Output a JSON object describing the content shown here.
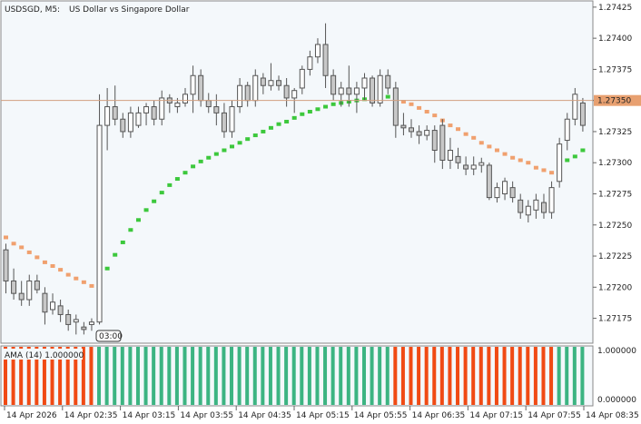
{
  "header": {
    "symbol_timeframe": "USDSGD, M5:",
    "description": "US Dollar vs Singapore Dollar"
  },
  "indicator_panel": {
    "label": "AMA (14) 1.000000",
    "levels": [
      "1.000000",
      "0.000000"
    ]
  },
  "crosshair_label": "03:00",
  "colors": {
    "background": "#F4F8FB",
    "bull_candle": "#FFFFFF",
    "bear_candle": "#C8C8C8",
    "candle_outline": "#555555",
    "ama_up": "#3CC83C",
    "ama_down": "#F0A06E",
    "bid_line": "#D2A080",
    "bid_tag": "#E8A070",
    "hist_red": "#F04A14",
    "hist_green": "#3CB482"
  },
  "chart_data": [
    {
      "type": "candlestick",
      "symbol": "USDSGD",
      "timeframe": "M5",
      "price_axis_ticks": [
        "1.27425",
        "1.27400",
        "1.27375",
        "1.27350",
        "1.27325",
        "1.27300",
        "1.27275",
        "1.27250",
        "1.27225",
        "1.27200",
        "1.27175"
      ],
      "current_price": "1.27350",
      "ylim": [
        1.27155,
        1.2743
      ],
      "time_axis_ticks": [
        "14 Apr 2026",
        "14 Apr 02:35",
        "14 Apr 03:15",
        "14 Apr 03:55",
        "14 Apr 04:35",
        "14 Apr 05:15",
        "14 Apr 05:55",
        "14 Apr 06:35",
        "14 Apr 07:15",
        "14 Apr 07:55",
        "14 Apr 08:35"
      ],
      "candles": [
        [
          1.2723,
          1.27235,
          1.27195,
          1.27205
        ],
        [
          1.27205,
          1.27215,
          1.2719,
          1.27195
        ],
        [
          1.27195,
          1.27205,
          1.27185,
          1.2719
        ],
        [
          1.2719,
          1.2721,
          1.27185,
          1.27205
        ],
        [
          1.27205,
          1.2721,
          1.27195,
          1.27198
        ],
        [
          1.27195,
          1.272,
          1.2717,
          1.2718
        ],
        [
          1.27182,
          1.27195,
          1.27178,
          1.27188
        ],
        [
          1.27185,
          1.2719,
          1.27172,
          1.27178
        ],
        [
          1.27178,
          1.27182,
          1.27165,
          1.2717
        ],
        [
          1.27172,
          1.27178,
          1.27162,
          1.27174
        ],
        [
          1.27168,
          1.27172,
          1.27162,
          1.27166
        ],
        [
          1.2717,
          1.27175,
          1.27165,
          1.27172
        ],
        [
          1.27172,
          1.27355,
          1.2717,
          1.2733
        ],
        [
          1.2733,
          1.2736,
          1.2731,
          1.27345
        ],
        [
          1.27345,
          1.27362,
          1.2733,
          1.27335
        ],
        [
          1.27335,
          1.2734,
          1.2732,
          1.27325
        ],
        [
          1.27325,
          1.27345,
          1.2732,
          1.2734
        ],
        [
          1.2733,
          1.27345,
          1.27328,
          1.2734
        ],
        [
          1.2734,
          1.27348,
          1.2733,
          1.27345
        ],
        [
          1.27345,
          1.2735,
          1.2733,
          1.27335
        ],
        [
          1.27335,
          1.27358,
          1.2733,
          1.27352
        ],
        [
          1.27352,
          1.27355,
          1.2734,
          1.27348
        ],
        [
          1.27345,
          1.27352,
          1.2734,
          1.27348
        ],
        [
          1.27348,
          1.2736,
          1.27345,
          1.27355
        ],
        [
          1.27355,
          1.27378,
          1.2734,
          1.2737
        ],
        [
          1.2737,
          1.27375,
          1.27345,
          1.2735
        ],
        [
          1.2735,
          1.27356,
          1.2734,
          1.27345
        ],
        [
          1.27345,
          1.27355,
          1.2733,
          1.2734
        ],
        [
          1.2734,
          1.27348,
          1.2732,
          1.27325
        ],
        [
          1.27325,
          1.2735,
          1.2732,
          1.27345
        ],
        [
          1.27345,
          1.27368,
          1.2734,
          1.27362
        ],
        [
          1.27362,
          1.27365,
          1.27345,
          1.2735
        ],
        [
          1.2735,
          1.27375,
          1.27345,
          1.2737
        ],
        [
          1.27368,
          1.27372,
          1.27355,
          1.27362
        ],
        [
          1.27362,
          1.2738,
          1.27358,
          1.27366
        ],
        [
          1.27366,
          1.2737,
          1.27358,
          1.27362
        ],
        [
          1.27362,
          1.27368,
          1.27345,
          1.27352
        ],
        [
          1.27352,
          1.2736,
          1.2734,
          1.27358
        ],
        [
          1.2736,
          1.27378,
          1.27355,
          1.27375
        ],
        [
          1.27375,
          1.2739,
          1.2737,
          1.27385
        ],
        [
          1.27385,
          1.274,
          1.2738,
          1.27395
        ],
        [
          1.27395,
          1.27412,
          1.2736,
          1.2737
        ],
        [
          1.2737,
          1.27375,
          1.2735,
          1.27355
        ],
        [
          1.27355,
          1.27365,
          1.27345,
          1.2736
        ],
        [
          1.2736,
          1.27378,
          1.27345,
          1.27355
        ],
        [
          1.27355,
          1.27365,
          1.2734,
          1.2736
        ],
        [
          1.2736,
          1.27372,
          1.2735,
          1.27368
        ],
        [
          1.27368,
          1.2737,
          1.27345,
          1.27348
        ],
        [
          1.27348,
          1.27375,
          1.27345,
          1.2737
        ],
        [
          1.2737,
          1.27375,
          1.27355,
          1.2736
        ],
        [
          1.2736,
          1.27365,
          1.2732,
          1.2733
        ],
        [
          1.2733,
          1.2734,
          1.27322,
          1.27328
        ],
        [
          1.27328,
          1.27335,
          1.2732,
          1.27325
        ],
        [
          1.27325,
          1.2733,
          1.27315,
          1.27322
        ],
        [
          1.27322,
          1.2733,
          1.27318,
          1.27326
        ],
        [
          1.27326,
          1.2733,
          1.273,
          1.2731
        ],
        [
          1.2733,
          1.27335,
          1.27295,
          1.27302
        ],
        [
          1.27302,
          1.2732,
          1.27295,
          1.2731
        ],
        [
          1.27305,
          1.27312,
          1.27295,
          1.273
        ],
        [
          1.27298,
          1.27305,
          1.2729,
          1.27295
        ],
        [
          1.27295,
          1.27305,
          1.2729,
          1.27298
        ],
        [
          1.27298,
          1.27304,
          1.27292,
          1.273
        ],
        [
          1.27298,
          1.273,
          1.2727,
          1.27272
        ],
        [
          1.27272,
          1.27284,
          1.27268,
          1.2728
        ],
        [
          1.27275,
          1.27288,
          1.2727,
          1.27285
        ],
        [
          1.2728,
          1.27285,
          1.27268,
          1.27272
        ],
        [
          1.2727,
          1.27275,
          1.27255,
          1.2726
        ],
        [
          1.27258,
          1.2727,
          1.27252,
          1.27265
        ],
        [
          1.27262,
          1.27275,
          1.27255,
          1.2727
        ],
        [
          1.27268,
          1.27275,
          1.27255,
          1.2726
        ],
        [
          1.2726,
          1.27285,
          1.27255,
          1.2728
        ],
        [
          1.27285,
          1.2732,
          1.2728,
          1.27315
        ],
        [
          1.27318,
          1.2734,
          1.2731,
          1.27335
        ],
        [
          1.27335,
          1.2736,
          1.2733,
          1.27355
        ],
        [
          1.27348,
          1.27352,
          1.27325,
          1.2733
        ]
      ],
      "ama": [
        1.2724,
        1.27235,
        1.27232,
        1.27228,
        1.27224,
        1.2722,
        1.27217,
        1.27214,
        1.2721,
        1.27207,
        1.27204,
        1.27201,
        1.27203,
        1.27215,
        1.27226,
        1.27236,
        1.27246,
        1.27254,
        1.27262,
        1.27269,
        1.27276,
        1.27282,
        1.27287,
        1.27292,
        1.27297,
        1.27301,
        1.27304,
        1.27307,
        1.2731,
        1.27313,
        1.27316,
        1.27319,
        1.27322,
        1.27325,
        1.27328,
        1.27331,
        1.27333,
        1.27336,
        1.27339,
        1.27341,
        1.27343,
        1.27345,
        1.27347,
        1.27348,
        1.27349,
        1.2735,
        1.27351,
        1.27352,
        1.27352,
        1.27353,
        1.27351,
        1.27349,
        1.27347,
        1.27344,
        1.27341,
        1.27338,
        1.27334,
        1.2733,
        1.27327,
        1.27323,
        1.2732,
        1.27316,
        1.27313,
        1.2731,
        1.27307,
        1.27304,
        1.27302,
        1.273,
        1.27296,
        1.27294,
        1.27292,
        1.27298,
        1.27302,
        1.27305,
        1.2731
      ],
      "ama_trend": [
        -1,
        -1,
        -1,
        -1,
        -1,
        -1,
        -1,
        -1,
        -1,
        -1,
        -1,
        -1,
        1,
        1,
        1,
        1,
        1,
        1,
        1,
        1,
        1,
        1,
        1,
        1,
        1,
        1,
        1,
        1,
        1,
        1,
        1,
        1,
        1,
        1,
        1,
        1,
        1,
        1,
        1,
        1,
        1,
        1,
        1,
        1,
        1,
        1,
        1,
        1,
        1,
        1,
        -1,
        -1,
        -1,
        -1,
        -1,
        -1,
        -1,
        -1,
        -1,
        -1,
        -1,
        -1,
        -1,
        -1,
        -1,
        -1,
        -1,
        -1,
        -1,
        -1,
        -1,
        1,
        1,
        1,
        1
      ]
    },
    {
      "type": "bar",
      "name": "AMA (14) 1.000000",
      "values": [
        1,
        1,
        1,
        1,
        1,
        1,
        1,
        1,
        1,
        1,
        1,
        1,
        1,
        1,
        1,
        1,
        1,
        1,
        1,
        1,
        1,
        1,
        1,
        1,
        1,
        1,
        1,
        1,
        1,
        1,
        1,
        1,
        1,
        1,
        1,
        1,
        1,
        1,
        1,
        1,
        1,
        1,
        1,
        1,
        1,
        1,
        1,
        1,
        1,
        1,
        1,
        1,
        1,
        1,
        1,
        1,
        1,
        1,
        1,
        1,
        1,
        1,
        1,
        1,
        1,
        1,
        1,
        1,
        1,
        1,
        1,
        1,
        1,
        1,
        1
      ],
      "trend": [
        -1,
        -1,
        -1,
        -1,
        -1,
        -1,
        -1,
        -1,
        -1,
        -1,
        -1,
        -1,
        1,
        1,
        1,
        1,
        1,
        1,
        1,
        1,
        1,
        1,
        1,
        1,
        1,
        1,
        1,
        1,
        1,
        1,
        1,
        1,
        1,
        1,
        1,
        1,
        1,
        1,
        1,
        1,
        1,
        1,
        1,
        1,
        1,
        1,
        1,
        1,
        1,
        1,
        -1,
        -1,
        -1,
        -1,
        -1,
        -1,
        -1,
        -1,
        -1,
        -1,
        -1,
        -1,
        -1,
        -1,
        -1,
        -1,
        -1,
        -1,
        -1,
        -1,
        -1,
        1,
        1,
        1,
        1
      ],
      "ylim": [
        0,
        1
      ]
    }
  ]
}
